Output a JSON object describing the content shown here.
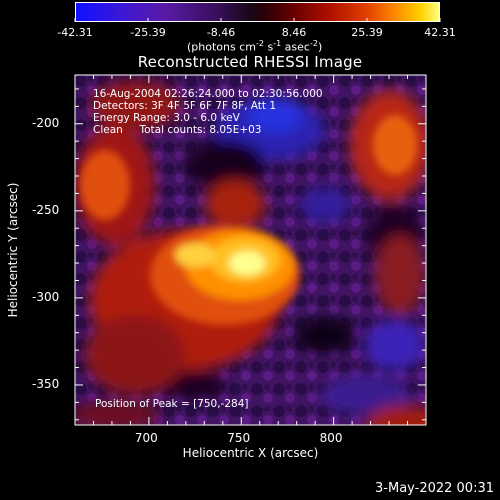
{
  "colorbar": {
    "ticks": [
      "-42.31",
      "-25.39",
      "-8.46",
      "8.46",
      "25.39",
      "42.31"
    ],
    "units_text": "(photons cm",
    "units_exp1": "-2",
    "units_mid": " s",
    "units_exp2": "-1",
    "units_end": " asec",
    "units_exp3": "-2",
    "units_close": ")"
  },
  "chart_data": {
    "type": "heatmap",
    "title": "Reconstructed RHESSI Image",
    "xlabel": "Heliocentric X (arcsec)",
    "ylabel": "Heliocentric Y (arcsec)",
    "xlim": [
      660,
      850
    ],
    "ylim": [
      -373,
      -172
    ],
    "xticks": [
      700,
      750,
      800
    ],
    "yticks": [
      -200,
      -250,
      -300,
      -350
    ],
    "color_range": [
      -42.31,
      42.31
    ],
    "annotations": [
      "16-Aug-2004 02:26:24.000 to 02:30:56.000",
      "Detectors: 3F 4F 5F 6F 7F 8F, Att 1",
      "Energy Range: 3.0 - 6.0 keV",
      "Clean     Total counts: 8.05E+03",
      "Position of Peak = [750,-284]"
    ],
    "peak": [
      750,
      -284
    ]
  },
  "footer": {
    "date": "3-May-2022 00:31"
  }
}
